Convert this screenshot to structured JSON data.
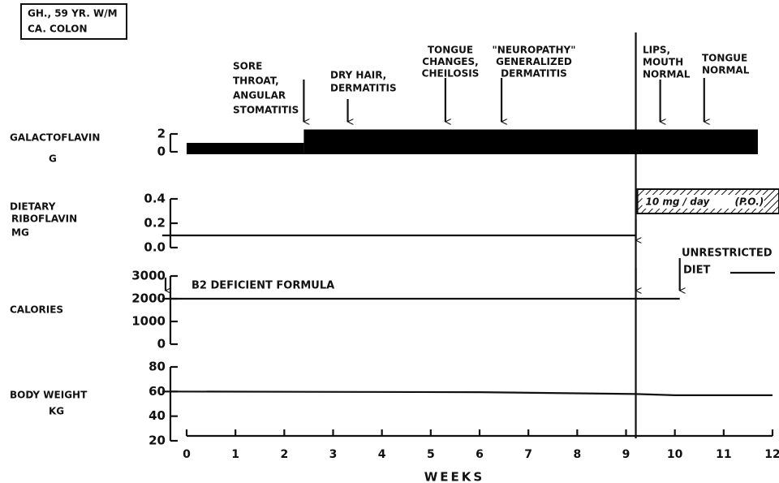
{
  "header": {
    "lines": [
      "GH., 59 YR. W/M",
      "CA. COLON"
    ]
  },
  "annotations": [
    {
      "lines": [
        "SORE",
        "THROAT,",
        "ANGULAR",
        "STOMATITIS"
      ],
      "x": 2.4
    },
    {
      "lines": [
        "DRY HAIR,",
        "DERMATITIS"
      ],
      "x": 3.3
    },
    {
      "lines": [
        "TONGUE",
        "CHANGES,",
        "CHEILOSIS"
      ],
      "x": 5.3
    },
    {
      "lines": [
        "\"NEUROPATHY\"",
        "GENERALIZED",
        "DERMATITIS"
      ],
      "x": 6.45
    },
    {
      "lines": [
        "LIPS,",
        "MOUTH",
        "NORMAL"
      ],
      "x": 9.7
    },
    {
      "lines": [
        "TONGUE",
        "NORMAL"
      ],
      "x": 10.6
    }
  ],
  "chart_data": {
    "type": "line",
    "xlabel": "WEEKS",
    "xlim": [
      0,
      12
    ],
    "xticks": [
      0,
      1,
      2,
      3,
      4,
      5,
      6,
      7,
      8,
      9,
      10,
      11,
      12
    ],
    "change_week": 9.2,
    "panels": [
      {
        "type": "step-bar",
        "ylabel": [
          "GALACTOFLAVIN",
          "G"
        ],
        "ylim": [
          0,
          2
        ],
        "yticks": [
          0,
          2
        ],
        "edges": [
          0,
          2.4,
          11.7
        ],
        "values": [
          1,
          2.5
        ],
        "color": "#000000"
      },
      {
        "type": "line",
        "ylabel": [
          "DIETARY",
          "RIBOFLAVIN",
          "MG"
        ],
        "ylim": [
          0,
          0.4
        ],
        "yticks": [
          {
            "value": 0,
            "label": "0.0"
          },
          0.2,
          0.4
        ],
        "x": [
          -0.5,
          9.2
        ],
        "values": [
          0.1,
          0.1
        ],
        "supplement": {
          "label": "10 mg / day",
          "note": "(P.O.)",
          "x": [
            9.2,
            12
          ]
        }
      },
      {
        "type": "line",
        "ylabel": [
          "CALORIES"
        ],
        "ylim": [
          0,
          3000
        ],
        "yticks": [
          0,
          1000,
          2000,
          3000
        ],
        "x": [
          -0.5,
          10.1
        ],
        "values": [
          2000,
          2000
        ],
        "start_label": "B2 DEFICIENT FORMULA",
        "end_label": [
          "UNRESTRICTED",
          "DIET"
        ],
        "end_x": 10.1
      },
      {
        "type": "line",
        "ylabel": [
          "BODY WEIGHT",
          "KG"
        ],
        "ylim": [
          20,
          80
        ],
        "yticks": [
          20,
          40,
          60,
          80
        ],
        "x": [
          -0.5,
          6,
          9.2,
          10,
          12
        ],
        "values": [
          60,
          59.5,
          58,
          57,
          57
        ]
      }
    ]
  }
}
